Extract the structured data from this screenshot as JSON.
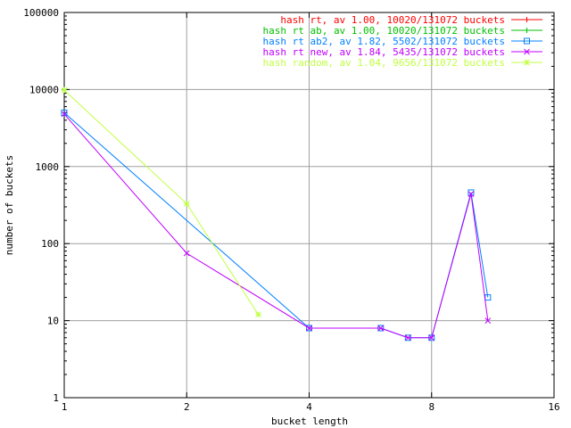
{
  "chart_data": {
    "type": "line",
    "title": "",
    "xlabel": "bucket length",
    "ylabel": "number of buckets",
    "x_scale": "log2",
    "y_scale": "log10",
    "xlim": [
      1,
      16
    ],
    "ylim": [
      1,
      100000
    ],
    "x_ticks": [
      "1",
      "2",
      "4",
      "8",
      "16"
    ],
    "y_ticks": [
      "1",
      "10",
      "100",
      "1000",
      "10000",
      "100000"
    ],
    "grid": true,
    "legend_position": "top-right",
    "series": [
      {
        "name": "hash rt, av 1.00, 10020/131072 buckets",
        "color": "#ff0000",
        "marker": "plus",
        "points": [
          [
            1,
            10000
          ]
        ]
      },
      {
        "name": "hash rt ab, av 1.00, 10020/131072 buckets",
        "color": "#00c000",
        "marker": "plus",
        "points": [
          [
            1,
            10000
          ]
        ]
      },
      {
        "name": "hash rt ab2, av 1.82, 5502/131072 buckets",
        "color": "#0080ff",
        "marker": "square",
        "points": [
          [
            1,
            5000
          ],
          [
            4,
            8
          ],
          [
            6,
            8
          ],
          [
            7,
            6
          ],
          [
            8,
            6
          ],
          [
            10,
            460
          ],
          [
            11,
            20
          ]
        ]
      },
      {
        "name": "hash rt new, av 1.84, 5435/131072 buckets",
        "color": "#c000ff",
        "marker": "x",
        "points": [
          [
            1,
            4800
          ],
          [
            2,
            75
          ],
          [
            4,
            8
          ],
          [
            6,
            8
          ],
          [
            7,
            6
          ],
          [
            8,
            6
          ],
          [
            10,
            440
          ],
          [
            11,
            10
          ]
        ]
      },
      {
        "name": "hash random, av 1.04, 9656/131072 buckets",
        "color": "#c0ff40",
        "marker": "star",
        "points": [
          [
            1,
            9800
          ],
          [
            2,
            330
          ],
          [
            3,
            12
          ]
        ]
      }
    ]
  }
}
